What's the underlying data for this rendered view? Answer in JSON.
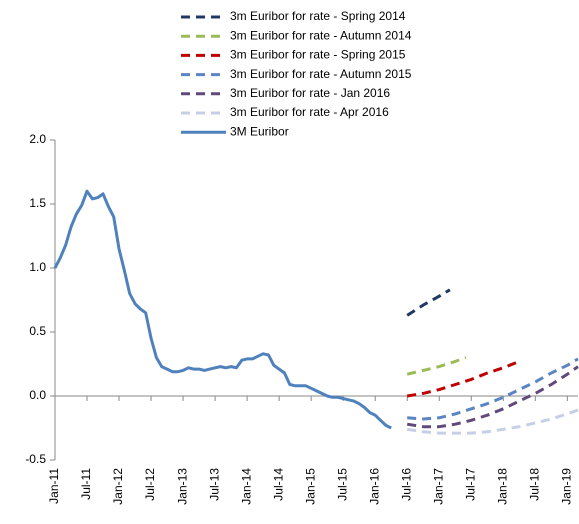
{
  "chart_data": {
    "type": "line",
    "xlim": [
      "2011-01",
      "2019-03"
    ],
    "xticks": [
      {
        "value": "2011-01",
        "label": "Jan-11"
      },
      {
        "value": "2011-07",
        "label": "Jul-11"
      },
      {
        "value": "2012-01",
        "label": "Jan-12"
      },
      {
        "value": "2012-07",
        "label": "Jul-12"
      },
      {
        "value": "2013-01",
        "label": "Jan-13"
      },
      {
        "value": "2013-07",
        "label": "Jul-13"
      },
      {
        "value": "2014-01",
        "label": "Jan-14"
      },
      {
        "value": "2014-07",
        "label": "Jul-14"
      },
      {
        "value": "2015-01",
        "label": "Jan-15"
      },
      {
        "value": "2015-07",
        "label": "Jul-15"
      },
      {
        "value": "2016-01",
        "label": "Jan-16"
      },
      {
        "value": "2016-07",
        "label": "Jul-16"
      },
      {
        "value": "2017-01",
        "label": "Jan-17"
      },
      {
        "value": "2017-07",
        "label": "Jul-17"
      },
      {
        "value": "2018-01",
        "label": "Jan-18"
      },
      {
        "value": "2018-07",
        "label": "Jul-18"
      },
      {
        "value": "2019-01",
        "label": "Jan-19"
      }
    ],
    "ylim": [
      -0.5,
      2
    ],
    "yticks": [
      -0.5,
      {
        "value": 0,
        "label": "0.0"
      },
      0.5,
      {
        "value": 1,
        "label": "1.0"
      },
      1.5,
      {
        "value": 2,
        "label": "2.0"
      }
    ],
    "grid": false,
    "series": [
      {
        "name": "3m Euribor for rate - Spring 2014",
        "color": "#1f3864",
        "dashed": true,
        "x": [
          "2016-07",
          "2016-10",
          "2017-01",
          "2017-03"
        ],
        "values": [
          0.63,
          0.71,
          0.78,
          0.83
        ]
      },
      {
        "name": "3m Euribor for rate - Autumn 2014",
        "color": "#9bbb59",
        "dashed": true,
        "x": [
          "2016-07",
          "2016-10",
          "2017-01",
          "2017-04",
          "2017-06"
        ],
        "values": [
          0.17,
          0.2,
          0.23,
          0.27,
          0.3
        ]
      },
      {
        "name": "3m Euribor for rate - Spring 2015",
        "color": "#c00000",
        "dashed": true,
        "x": [
          "2016-07",
          "2016-10",
          "2017-01",
          "2017-04",
          "2017-07",
          "2017-10",
          "2018-01",
          "2018-04"
        ],
        "values": [
          0,
          0.02,
          0.05,
          0.09,
          0.13,
          0.18,
          0.22,
          0.27
        ]
      },
      {
        "name": "3m Euribor for rate - Autumn 2015",
        "color": "#5b84c4",
        "dashed": true,
        "x": [
          "2016-07",
          "2016-10",
          "2017-01",
          "2017-04",
          "2017-07",
          "2017-10",
          "2018-01",
          "2018-04",
          "2018-07",
          "2018-10",
          "2019-01",
          "2019-03"
        ],
        "values": [
          -0.17,
          -0.18,
          -0.17,
          -0.14,
          -0.1,
          -0.06,
          -0.01,
          0.05,
          0.11,
          0.18,
          0.24,
          0.29
        ]
      },
      {
        "name": "3m Euribor for rate - Jan 2016",
        "color": "#604a7b",
        "dashed": true,
        "x": [
          "2016-07",
          "2016-10",
          "2017-01",
          "2017-04",
          "2017-07",
          "2017-10",
          "2018-01",
          "2018-04",
          "2018-07",
          "2018-10",
          "2019-01",
          "2019-03"
        ],
        "values": [
          -0.22,
          -0.24,
          -0.24,
          -0.22,
          -0.19,
          -0.15,
          -0.1,
          -0.04,
          0.02,
          0.09,
          0.17,
          0.23
        ]
      },
      {
        "name": "3m Euribor for rate - Apr 2016",
        "color": "#c5cfe6",
        "dashed": true,
        "x": [
          "2016-07",
          "2016-10",
          "2017-01",
          "2017-04",
          "2017-07",
          "2017-10",
          "2018-01",
          "2018-04",
          "2018-07",
          "2018-10",
          "2019-01",
          "2019-03"
        ],
        "values": [
          -0.26,
          -0.28,
          -0.29,
          -0.29,
          -0.29,
          -0.28,
          -0.26,
          -0.24,
          -0.21,
          -0.18,
          -0.14,
          -0.11
        ]
      },
      {
        "name": "3M Euribor",
        "color": "#4f81bd",
        "dashed": false,
        "x": [
          "2011-01",
          "2011-02",
          "2011-03",
          "2011-04",
          "2011-05",
          "2011-06",
          "2011-07",
          "2011-08",
          "2011-09",
          "2011-10",
          "2011-11",
          "2011-12",
          "2012-01",
          "2012-02",
          "2012-03",
          "2012-04",
          "2012-05",
          "2012-06",
          "2012-07",
          "2012-08",
          "2012-09",
          "2012-10",
          "2012-11",
          "2012-12",
          "2013-01",
          "2013-02",
          "2013-03",
          "2013-04",
          "2013-05",
          "2013-06",
          "2013-07",
          "2013-08",
          "2013-09",
          "2013-10",
          "2013-11",
          "2013-12",
          "2014-01",
          "2014-02",
          "2014-03",
          "2014-04",
          "2014-05",
          "2014-06",
          "2014-07",
          "2014-08",
          "2014-09",
          "2014-10",
          "2014-11",
          "2014-12",
          "2015-01",
          "2015-02",
          "2015-03",
          "2015-04",
          "2015-05",
          "2015-06",
          "2015-07",
          "2015-08",
          "2015-09",
          "2015-10",
          "2015-11",
          "2015-12",
          "2016-01",
          "2016-02",
          "2016-03",
          "2016-04"
        ],
        "values": [
          1.0,
          1.08,
          1.18,
          1.32,
          1.42,
          1.49,
          1.6,
          1.54,
          1.55,
          1.58,
          1.48,
          1.4,
          1.15,
          0.98,
          0.8,
          0.72,
          0.68,
          0.65,
          0.45,
          0.3,
          0.23,
          0.21,
          0.19,
          0.19,
          0.2,
          0.22,
          0.21,
          0.21,
          0.2,
          0.21,
          0.22,
          0.23,
          0.22,
          0.23,
          0.22,
          0.28,
          0.29,
          0.29,
          0.31,
          0.33,
          0.32,
          0.24,
          0.21,
          0.18,
          0.09,
          0.08,
          0.08,
          0.08,
          0.06,
          0.04,
          0.02,
          0,
          -0.01,
          -0.01,
          -0.02,
          -0.03,
          -0.04,
          -0.06,
          -0.09,
          -0.13,
          -0.15,
          -0.19,
          -0.23,
          -0.25
        ]
      }
    ]
  }
}
